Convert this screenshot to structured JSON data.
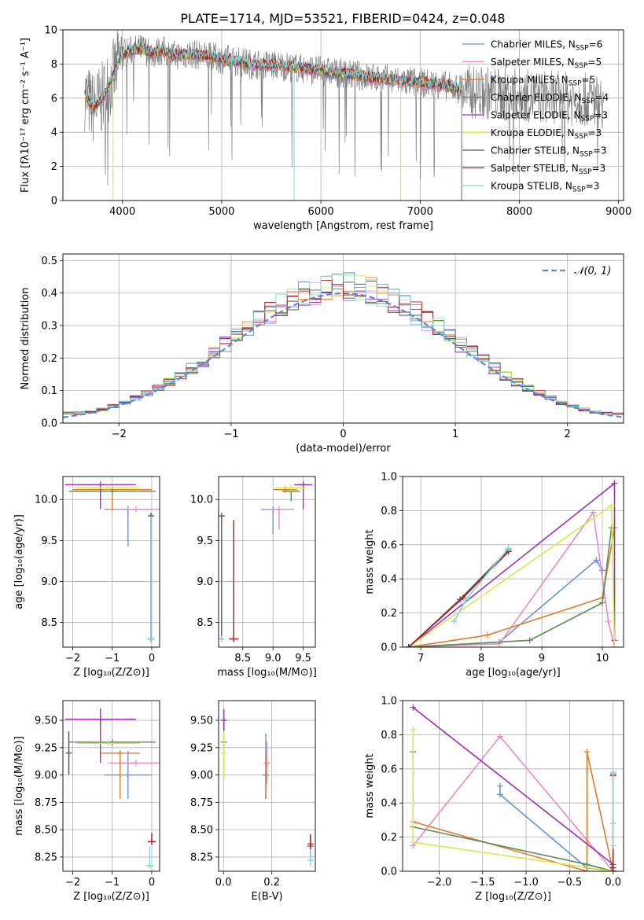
{
  "title": "PLATE=1714, MJD=53521, FIBERID=0424, z=0.048",
  "colors": {
    "chabrier_miles": "#6a8fd8",
    "salpeter_miles": "#e78ac3",
    "kroupa_miles": "#e07b2a",
    "chabrier_elodie": "#5c8a5c",
    "salpeter_elodie": "#9c2fb5",
    "kroupa_elodie": "#d4eb4b",
    "chabrier_stelib": "#555555",
    "salpeter_stelib": "#b11b1b",
    "kroupa_stelib": "#7fd7d7",
    "data": "#808080"
  },
  "chart_data": [
    {
      "id": "spectrum",
      "type": "line",
      "xlabel": "wavelength [Angstrom, rest frame]",
      "ylabel": "Flux [fλ10⁻¹⁷ erg cm⁻² s⁻¹ A⁻¹]",
      "xlim": [
        3400,
        9050
      ],
      "ylim": [
        0,
        10
      ],
      "xticks": [
        "4000",
        "5000",
        "6000",
        "7000",
        "8000",
        "9000"
      ],
      "yticks": [
        "0",
        "2",
        "4",
        "6",
        "8",
        "10"
      ],
      "legend_placement": "right",
      "legend": [
        {
          "key": "chabrier_miles",
          "label": "Chabrier MILES, N",
          "sub": "SSP",
          "suffix": "=6"
        },
        {
          "key": "salpeter_miles",
          "label": "Salpeter MILES, N",
          "sub": "SSP",
          "suffix": "=5"
        },
        {
          "key": "kroupa_miles",
          "label": "Kroupa MILES, N",
          "sub": "SSP",
          "suffix": "=5"
        },
        {
          "key": "chabrier_elodie",
          "label": "Chabrier ELODIE, N",
          "sub": "SSP",
          "suffix": "=4"
        },
        {
          "key": "salpeter_elodie",
          "label": "Salpeter ELODIE, N",
          "sub": "SSP",
          "suffix": "=3"
        },
        {
          "key": "kroupa_elodie",
          "label": "Kroupa ELODIE, N",
          "sub": "SSP",
          "suffix": "=3"
        },
        {
          "key": "chabrier_stelib",
          "label": "Chabrier STELIB, N",
          "sub": "SSP",
          "suffix": "=3"
        },
        {
          "key": "salpeter_stelib",
          "label": "Salpeter STELIB, N",
          "sub": "SSP",
          "suffix": "=3"
        },
        {
          "key": "kroupa_stelib",
          "label": "Kroupa STELIB, N",
          "sub": "SSP",
          "suffix": "=3"
        }
      ],
      "model_shape": {
        "x": [
          3620,
          3700,
          3800,
          3900,
          4000,
          4100,
          4200,
          4300,
          4400,
          4500,
          4700,
          5000,
          5300,
          5600,
          6000,
          6400,
          6800,
          7200,
          7420
        ],
        "y": [
          6.2,
          5.4,
          6.0,
          7.2,
          8.6,
          8.8,
          8.9,
          8.6,
          8.8,
          8.5,
          8.6,
          8.3,
          8.0,
          7.9,
          7.6,
          7.3,
          7.0,
          6.8,
          6.5
        ]
      },
      "model_end_x": 7420,
      "data_range": [
        3620,
        8850
      ],
      "kroupa_stelib_drop_x": 5730,
      "kroupa_elodie_drop_x": [
        3905,
        6805
      ]
    },
    {
      "id": "residuals",
      "type": "line",
      "xlabel": "(data-model)/error",
      "ylabel": "Normed distribution",
      "xlim": [
        -2.5,
        2.5
      ],
      "ylim": [
        0,
        0.52
      ],
      "xticks": [
        "−2",
        "−1",
        "0",
        "1",
        "2"
      ],
      "yticks": [
        "0.0",
        "0.1",
        "0.2",
        "0.3",
        "0.4",
        "0.5"
      ],
      "legend": [
        {
          "label": "𝒩(0, 1)"
        }
      ],
      "legend_placement": "top-right",
      "bin_width": 0.1
    },
    {
      "id": "age_vs_Z",
      "type": "scatter",
      "xlabel": "Z [log₁₀(Z/Z⊙)]",
      "ylabel": "age  [log₁₀(age/yr)]",
      "xlim": [
        -2.25,
        0.2
      ],
      "ylim": [
        8.2,
        10.28
      ],
      "xticks": [
        "−2",
        "−1",
        "0"
      ],
      "yticks": [
        "8.5",
        "9.0",
        "9.5",
        "10.0"
      ],
      "points": [
        {
          "key": "chabrier_miles",
          "x": -0.6,
          "y": 9.88,
          "xerr": 0.6,
          "yerr": [
            0.45,
            0.0
          ]
        },
        {
          "key": "salpeter_miles",
          "x": -0.4,
          "y": 9.88,
          "xerr": 0.7,
          "yerr": [
            0.0,
            0.0
          ]
        },
        {
          "key": "kroupa_miles",
          "x": -1.0,
          "y": 10.12,
          "xerr": 1.0,
          "yerr": [
            0.25,
            0.0
          ]
        },
        {
          "key": "chabrier_elodie",
          "x": -1.0,
          "y": 10.1,
          "xerr": 1.1,
          "yerr": [
            0.0,
            0.0
          ]
        },
        {
          "key": "salpeter_elodie",
          "x": -1.3,
          "y": 10.18,
          "xerr": 0.9,
          "yerr": [
            0.3,
            0.0
          ]
        },
        {
          "key": "kroupa_elodie",
          "x": -1.1,
          "y": 10.14,
          "xerr": 0.8,
          "yerr": [
            0.0,
            0.0
          ]
        },
        {
          "key": "chabrier_stelib",
          "x": -0.02,
          "y": 9.8,
          "xerr": 0.0,
          "yerr": [
            1.5,
            0.0
          ]
        },
        {
          "key": "salpeter_stelib",
          "x": -0.02,
          "y": 8.3,
          "xerr": 0.08,
          "yerr": [
            0.0,
            0.0
          ]
        },
        {
          "key": "kroupa_stelib",
          "x": -0.02,
          "y": 8.3,
          "xerr": 0.1,
          "yerr": [
            0.0,
            1.5
          ]
        }
      ]
    },
    {
      "id": "age_vs_mass",
      "type": "scatter",
      "xlabel": "mass [log₁₀(M/M⊙)]",
      "ylabel": "",
      "xlim": [
        8.1,
        9.7
      ],
      "ylim": [
        8.2,
        10.28
      ],
      "xticks": [
        "8.5",
        "9.0",
        "9.5"
      ],
      "yticks": [
        "8.5",
        "9.0",
        "9.5",
        "10.0"
      ],
      "points": [
        {
          "key": "chabrier_miles",
          "x": 9.0,
          "y": 9.88,
          "xerr": 0.2,
          "yerr": [
            0.3,
            0.0
          ]
        },
        {
          "key": "salpeter_miles",
          "x": 9.1,
          "y": 9.88,
          "xerr": 0.25,
          "yerr": [
            0.25,
            0.0
          ]
        },
        {
          "key": "kroupa_miles",
          "x": 9.2,
          "y": 10.12,
          "xerr": 0.2,
          "yerr": [
            0.0,
            0.0
          ]
        },
        {
          "key": "chabrier_elodie",
          "x": 9.3,
          "y": 10.1,
          "xerr": 0.15,
          "yerr": [
            0.12,
            0.0
          ]
        },
        {
          "key": "salpeter_elodie",
          "x": 9.5,
          "y": 10.18,
          "xerr": 0.15,
          "yerr": [
            0.3,
            0.0
          ]
        },
        {
          "key": "kroupa_elodie",
          "x": 9.3,
          "y": 10.14,
          "xerr": 0.25,
          "yerr": [
            0.0,
            0.0
          ]
        },
        {
          "key": "chabrier_stelib",
          "x": 8.15,
          "y": 9.8,
          "xerr": 0.0,
          "yerr": [
            1.5,
            0.0
          ]
        },
        {
          "key": "salpeter_stelib",
          "x": 8.35,
          "y": 8.3,
          "xerr": 0.08,
          "yerr": [
            0.0,
            1.45
          ]
        },
        {
          "key": "kroupa_stelib",
          "x": 8.15,
          "y": 8.3,
          "xerr": 0.05,
          "yerr": [
            0.0,
            0.0
          ]
        }
      ]
    },
    {
      "id": "weight_vs_age",
      "type": "line",
      "xlabel": "age  [log₁₀(age/yr)]",
      "ylabel": "mass weight",
      "xlim": [
        6.7,
        10.35
      ],
      "ylim": [
        0,
        1.0
      ],
      "xticks": [
        "7",
        "8",
        "9",
        "10"
      ],
      "yticks": [
        "0.0",
        "0.2",
        "0.4",
        "0.6",
        "0.8",
        "1.0"
      ],
      "series": [
        {
          "key": "chabrier_miles",
          "x": [
            6.8,
            8.3,
            9.9,
            10.0
          ],
          "y": [
            0.0,
            0.03,
            0.51,
            0.45
          ]
        },
        {
          "key": "salpeter_miles",
          "x": [
            6.8,
            8.3,
            9.85,
            10.1,
            10.2
          ],
          "y": [
            0.0,
            0.02,
            0.79,
            0.15,
            0.0
          ]
        },
        {
          "key": "kroupa_miles",
          "x": [
            6.8,
            8.1,
            10.0,
            10.2
          ],
          "y": [
            0.0,
            0.07,
            0.29,
            0.7
          ]
        },
        {
          "key": "chabrier_elodie",
          "x": [
            6.8,
            8.8,
            10.0,
            10.15
          ],
          "y": [
            0.0,
            0.04,
            0.26,
            0.7
          ]
        },
        {
          "key": "salpeter_elodie",
          "x": [
            6.8,
            10.2,
            10.2
          ],
          "y": [
            0.0,
            0.96,
            0.04
          ]
        },
        {
          "key": "kroupa_elodie",
          "x": [
            6.8,
            10.15,
            10.2
          ],
          "y": [
            0.0,
            0.83,
            0.0
          ]
        },
        {
          "key": "chabrier_stelib",
          "x": [
            6.8,
            7.65,
            8.45
          ],
          "y": [
            0.0,
            0.28,
            0.57
          ]
        },
        {
          "key": "salpeter_stelib",
          "x": [
            6.8,
            7.7,
            8.45
          ],
          "y": [
            0.0,
            0.29,
            0.56
          ]
        },
        {
          "key": "kroupa_stelib",
          "x": [
            7.55,
            7.75,
            8.45
          ],
          "y": [
            0.15,
            0.28,
            0.58
          ]
        }
      ]
    },
    {
      "id": "mass_vs_Z",
      "type": "scatter",
      "xlabel": "Z [log₁₀(Z/Z⊙)]",
      "ylabel": "mass [log₁₀(M/M⊙)]",
      "xlim": [
        -2.25,
        0.2
      ],
      "ylim": [
        8.12,
        9.68
      ],
      "xticks": [
        "−2",
        "−1",
        "0"
      ],
      "yticks": [
        "8.25",
        "8.50",
        "8.75",
        "9.00",
        "9.25",
        "9.50"
      ],
      "points": [
        {
          "key": "chabrier_miles",
          "x": -0.6,
          "y": 9.0,
          "xerr": 0.6,
          "yerr": [
            0.22,
            0.22
          ]
        },
        {
          "key": "salpeter_miles",
          "x": -0.4,
          "y": 9.11,
          "xerr": 0.7,
          "yerr": [
            0.0,
            0.0
          ]
        },
        {
          "key": "kroupa_miles",
          "x": -0.8,
          "y": 9.2,
          "xerr": 0.5,
          "yerr": [
            0.42,
            0.0
          ]
        },
        {
          "key": "chabrier_elodie",
          "x": -1.0,
          "y": 9.3,
          "xerr": 1.1,
          "yerr": [
            0.0,
            0.0
          ]
        },
        {
          "key": "salpeter_elodie",
          "x": -1.3,
          "y": 9.51,
          "xerr": 0.9,
          "yerr": [
            0.4,
            0.1
          ]
        },
        {
          "key": "kroupa_elodie",
          "x": -1.1,
          "y": 9.29,
          "xerr": 0.8,
          "yerr": [
            0.0,
            0.0
          ]
        },
        {
          "key": "chabrier_stelib",
          "x": -2.1,
          "y": 9.2,
          "xerr": 0.0,
          "yerr": [
            0.2,
            0.2
          ]
        },
        {
          "key": "salpeter_stelib",
          "x": 0.0,
          "y": 8.39,
          "xerr": 0.1,
          "yerr": [
            0.0,
            0.08
          ]
        },
        {
          "key": "kroupa_stelib",
          "x": -0.05,
          "y": 8.17,
          "xerr": 0.1,
          "yerr": [
            0.0,
            0.18
          ]
        }
      ]
    },
    {
      "id": "mass_vs_ebv",
      "type": "scatter",
      "xlabel": "E(B-V)",
      "ylabel": "",
      "xlim": [
        -0.02,
        0.38
      ],
      "ylim": [
        8.12,
        9.68
      ],
      "xticks": [
        "0.0",
        "0.2"
      ],
      "yticks": [
        "8.25",
        "8.50",
        "8.75",
        "9.00",
        "9.25",
        "9.50"
      ],
      "points": [
        {
          "key": "chabrier_miles",
          "x": 0.175,
          "y": 9.0,
          "xerr": 0.0,
          "yerr": [
            0.22,
            0.38
          ]
        },
        {
          "key": "salpeter_miles",
          "x": 0.18,
          "y": 9.11,
          "xerr": 0.0,
          "yerr": [
            0.2,
            0.2
          ]
        },
        {
          "key": "kroupa_miles",
          "x": 0.175,
          "y": 9.0,
          "xerr": 0.0,
          "yerr": [
            0.22,
            0.22
          ]
        },
        {
          "key": "chabrier_elodie",
          "x": 0.002,
          "y": 9.3,
          "xerr": 0.0,
          "yerr": [
            0.2,
            0.2
          ]
        },
        {
          "key": "salpeter_elodie",
          "x": 0.002,
          "y": 9.5,
          "xerr": 0.0,
          "yerr": [
            0.1,
            0.1
          ]
        },
        {
          "key": "kroupa_elodie",
          "x": 0.002,
          "y": 9.2,
          "xerr": 0.0,
          "yerr": [
            0.22,
            0.2
          ]
        },
        {
          "key": "chabrier_stelib",
          "x": 0.36,
          "y": 8.35,
          "xerr": 0.0,
          "yerr": [
            0.1,
            0.1
          ]
        },
        {
          "key": "salpeter_stelib",
          "x": 0.36,
          "y": 8.37,
          "xerr": 0.0,
          "yerr": [
            0.05,
            0.09
          ]
        },
        {
          "key": "kroupa_stelib",
          "x": 0.36,
          "y": 8.22,
          "xerr": 0.0,
          "yerr": [
            0.05,
            0.1
          ]
        }
      ]
    },
    {
      "id": "weight_vs_Z",
      "type": "line",
      "xlabel": "Z [log₁₀(Z/Z⊙)]",
      "ylabel": "mass weight",
      "xlim": [
        -2.42,
        0.12
      ],
      "ylim": [
        0,
        1.0
      ],
      "xticks": [
        "−2.0",
        "−1.5",
        "−1.0",
        "−0.5",
        "0.0"
      ],
      "yticks": [
        "0.0",
        "0.2",
        "0.4",
        "0.6",
        "0.8",
        "1.0"
      ],
      "series": [
        {
          "key": "chabrier_miles",
          "x": [
            -1.3,
            -1.3,
            -0.3,
            0.0
          ],
          "y": [
            0.5,
            0.45,
            0.02,
            0.0
          ]
        },
        {
          "key": "salpeter_miles",
          "x": [
            -2.3,
            -1.3,
            0.0
          ],
          "y": [
            0.15,
            0.79,
            0.0
          ]
        },
        {
          "key": "kroupa_miles",
          "x": [
            -2.3,
            -0.3,
            -0.3,
            0.0
          ],
          "y": [
            0.29,
            0.0,
            0.7,
            0.0
          ]
        },
        {
          "key": "chabrier_elodie",
          "x": [
            -2.3,
            -2.3,
            -0.3,
            0.0
          ],
          "y": [
            0.7,
            0.26,
            0.04,
            0.0
          ]
        },
        {
          "key": "salpeter_elodie",
          "x": [
            -2.3,
            0.0,
            0.0
          ],
          "y": [
            0.96,
            0.04,
            0.0
          ]
        },
        {
          "key": "kroupa_elodie",
          "x": [
            -2.3,
            -2.3,
            0.0
          ],
          "y": [
            0.83,
            0.17,
            0.0
          ]
        },
        {
          "key": "chabrier_stelib",
          "x": [
            0.0,
            0.0
          ],
          "y": [
            0.0,
            0.57
          ]
        },
        {
          "key": "salpeter_stelib",
          "x": [
            0.0,
            0.0
          ],
          "y": [
            0.02,
            0.56
          ]
        },
        {
          "key": "kroupa_stelib",
          "x": [
            0.0,
            0.0,
            0.0
          ],
          "y": [
            0.15,
            0.28,
            0.58
          ]
        }
      ]
    }
  ]
}
